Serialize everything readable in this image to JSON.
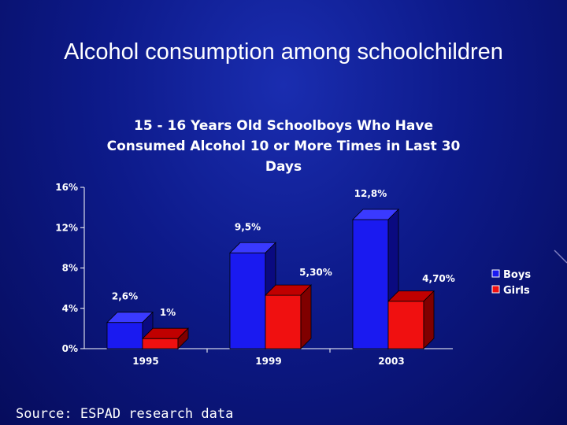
{
  "slide": {
    "title": "Alcohol consumption among schoolchildren",
    "source": "Source: ESPAD research data"
  },
  "chart_data": {
    "type": "bar",
    "title": "15 - 16 Years Old Schoolboys Who Have Consumed Alcohol 10 or More Times in Last 30 Days",
    "title_lines": [
      "15 - 16 Years Old Schoolboys Who Have",
      "Consumed Alcohol 10 or More Times in Last 30",
      "Days"
    ],
    "categories": [
      "1995",
      "1999",
      "2003"
    ],
    "series": [
      {
        "name": "Boys",
        "values": [
          2.6,
          9.5,
          12.8
        ],
        "labels": [
          "2,6%",
          "9,5%",
          "12,8%"
        ],
        "color": "#1a1af0",
        "side_color": "#0a0a80",
        "top_color": "#3a3aff"
      },
      {
        "name": "Girls",
        "values": [
          1,
          5.3,
          4.7
        ],
        "labels": [
          "1%",
          "5,30%",
          "4,70%"
        ],
        "color": "#f01010",
        "side_color": "#800000",
        "top_color": "#c00000"
      }
    ],
    "ylim": [
      0,
      16
    ],
    "yticks": [
      0,
      4,
      8,
      12,
      16
    ],
    "ytick_labels": [
      "0%",
      "4%",
      "8%",
      "12%",
      "16%"
    ],
    "xlabel": "",
    "ylabel": "",
    "legend": "right"
  }
}
